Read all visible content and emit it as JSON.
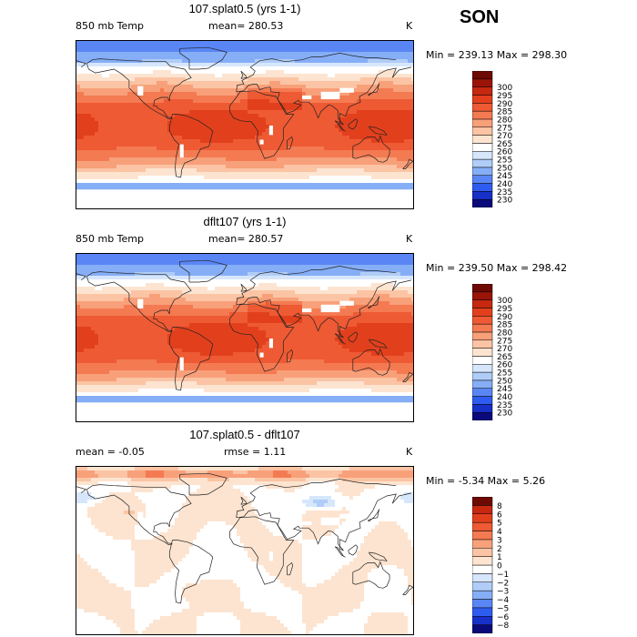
{
  "season": "SON",
  "palettes": {
    "temp": [
      "#0a0a7a",
      "#1730c8",
      "#2f5cf0",
      "#5a86f5",
      "#86aef7",
      "#b0cdf8",
      "#d6e6fb",
      "#ffffff",
      "#fde4d0",
      "#fbc4a4",
      "#f8a07a",
      "#f47a52",
      "#ee5a33",
      "#e2401d",
      "#c62810",
      "#9a1408",
      "#6e0a04"
    ],
    "diff": [
      "#0a0a7a",
      "#1730c8",
      "#2f5cf0",
      "#5a86f5",
      "#86aef7",
      "#b0cdf8",
      "#d6e6fb",
      "#ffffff",
      "#fde4d0",
      "#fbc4a4",
      "#f8a07a",
      "#f47a52",
      "#ee5a33",
      "#e2401d",
      "#c62810",
      "#6e0a04"
    ]
  },
  "chart_data": [
    {
      "type": "heatmap",
      "title": "107.splat0.5 (yrs 1-1)",
      "variable": "850 mb Temp",
      "stat_label": "mean= 280.53",
      "units": "K",
      "min_max": "Min = 239.13 Max = 298.30",
      "min": 239.13,
      "max": 298.3,
      "mean": 280.53,
      "levels": [
        230,
        235,
        240,
        245,
        250,
        255,
        260,
        265,
        270,
        275,
        280,
        285,
        290,
        295,
        300
      ],
      "level_labels": [
        "230",
        "235",
        "240",
        "245",
        "250",
        "255",
        "260",
        "265",
        "270",
        "275",
        "280",
        "285",
        "290",
        "295",
        "300"
      ],
      "palette": "temp",
      "field": "temp",
      "variant": 0
    },
    {
      "type": "heatmap",
      "title": "dflt107 (yrs 1-1)",
      "variable": "850 mb Temp",
      "stat_label": "mean= 280.57",
      "units": "K",
      "min_max": "Min = 239.50 Max = 298.42",
      "min": 239.5,
      "max": 298.42,
      "mean": 280.57,
      "levels": [
        230,
        235,
        240,
        245,
        250,
        255,
        260,
        265,
        270,
        275,
        280,
        285,
        290,
        295,
        300
      ],
      "level_labels": [
        "230",
        "235",
        "240",
        "245",
        "250",
        "255",
        "260",
        "265",
        "270",
        "275",
        "280",
        "285",
        "290",
        "295",
        "300"
      ],
      "palette": "temp",
      "field": "temp",
      "variant": 1
    },
    {
      "type": "heatmap",
      "title": "107.splat0.5 - dflt107",
      "variable": "mean =   -0.05",
      "stat_label": "rmse =    1.11",
      "units": "K",
      "min_max": "Min =  -5.34 Max =   5.26",
      "min": -5.34,
      "max": 5.26,
      "mean": -0.05,
      "rmse": 1.11,
      "levels": [
        -8,
        -6,
        -5,
        -4,
        -3,
        -2,
        -1,
        0,
        1,
        2,
        3,
        4,
        5,
        6,
        8
      ],
      "level_labels": [
        "−8",
        "−6",
        "−5",
        "−4",
        "−3",
        "−2",
        "−1",
        "0",
        "1",
        "2",
        "3",
        "4",
        "5",
        "6",
        "8"
      ],
      "palette": "diff",
      "field": "diff",
      "variant": 2
    }
  ]
}
